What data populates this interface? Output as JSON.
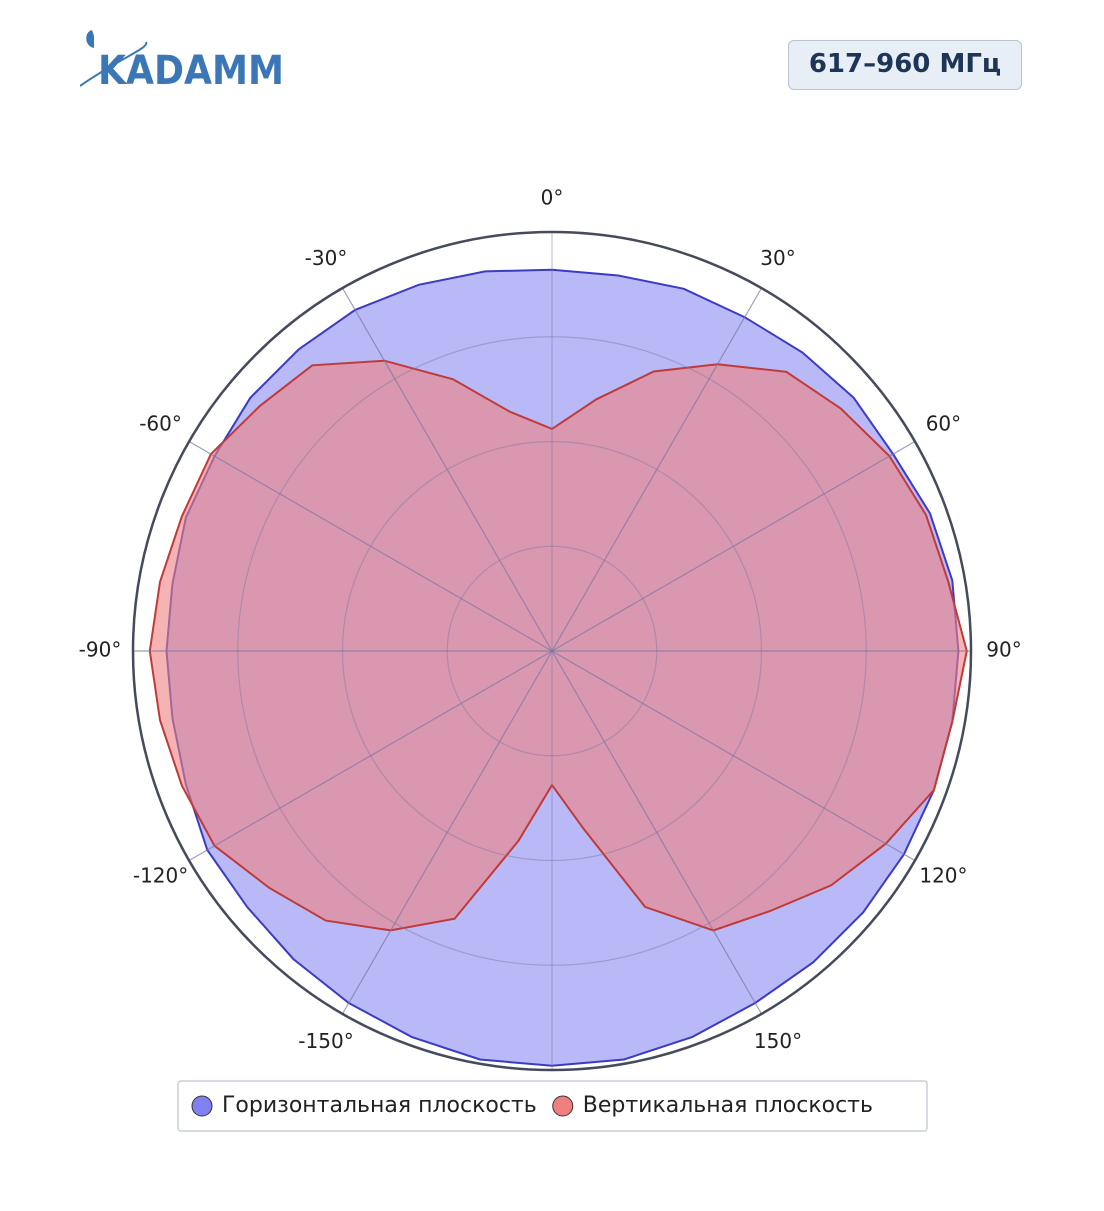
{
  "header": {
    "logo": "KADAMM",
    "badge": "617–960 МГц"
  },
  "chart_data": {
    "type": "polar",
    "theta": [
      -170,
      -160,
      -150,
      -140,
      -130,
      -120,
      -110,
      -100,
      -90,
      -80,
      -70,
      -60,
      -50,
      -40,
      -30,
      -20,
      -10,
      0,
      10,
      20,
      30,
      40,
      50,
      60,
      70,
      80,
      90,
      100,
      110,
      120,
      130,
      140,
      150,
      160,
      170,
      180
    ],
    "series": [
      {
        "name": "Горизонтальная плоскость",
        "color": "#3b3bc4",
        "fill": "#8080f0",
        "values": [
          0.99,
          0.98,
          0.97,
          0.96,
          0.95,
          0.95,
          0.93,
          0.92,
          0.92,
          0.92,
          0.93,
          0.93,
          0.94,
          0.94,
          0.94,
          0.93,
          0.92,
          0.91,
          0.91,
          0.92,
          0.92,
          0.93,
          0.94,
          0.94,
          0.96,
          0.97,
          0.97,
          0.97,
          0.97,
          0.97,
          0.97,
          0.97,
          0.97,
          0.98,
          0.99,
          0.99
        ]
      },
      {
        "name": "Вертикальная плоскость",
        "color": "#c03a3a",
        "fill": "#f08080",
        "values": [
          0.46,
          0.68,
          0.77,
          0.84,
          0.88,
          0.93,
          0.94,
          0.95,
          0.96,
          0.95,
          0.94,
          0.94,
          0.91,
          0.89,
          0.8,
          0.69,
          0.58,
          0.53,
          0.61,
          0.71,
          0.79,
          0.87,
          0.9,
          0.93,
          0.95,
          0.96,
          0.99,
          0.97,
          0.97,
          0.92,
          0.87,
          0.81,
          0.77,
          0.65,
          0.43,
          0.32
        ]
      }
    ],
    "rlim": [
      0,
      1
    ],
    "rgrid": [
      0.25,
      0.5,
      0.75
    ],
    "thetaticks": [
      {
        "value": 0,
        "label": "0°"
      },
      {
        "value": 30,
        "label": "30°"
      },
      {
        "value": 60,
        "label": "60°"
      },
      {
        "value": 90,
        "label": "90°"
      },
      {
        "value": 120,
        "label": "120°"
      },
      {
        "value": 150,
        "label": "150°"
      },
      {
        "value": -150,
        "label": "-150°"
      },
      {
        "value": -120,
        "label": "-120°"
      },
      {
        "value": -90,
        "label": "-90°"
      },
      {
        "value": -60,
        "label": "-60°"
      },
      {
        "value": -30,
        "label": "-30°"
      }
    ],
    "legend": "bottom"
  }
}
